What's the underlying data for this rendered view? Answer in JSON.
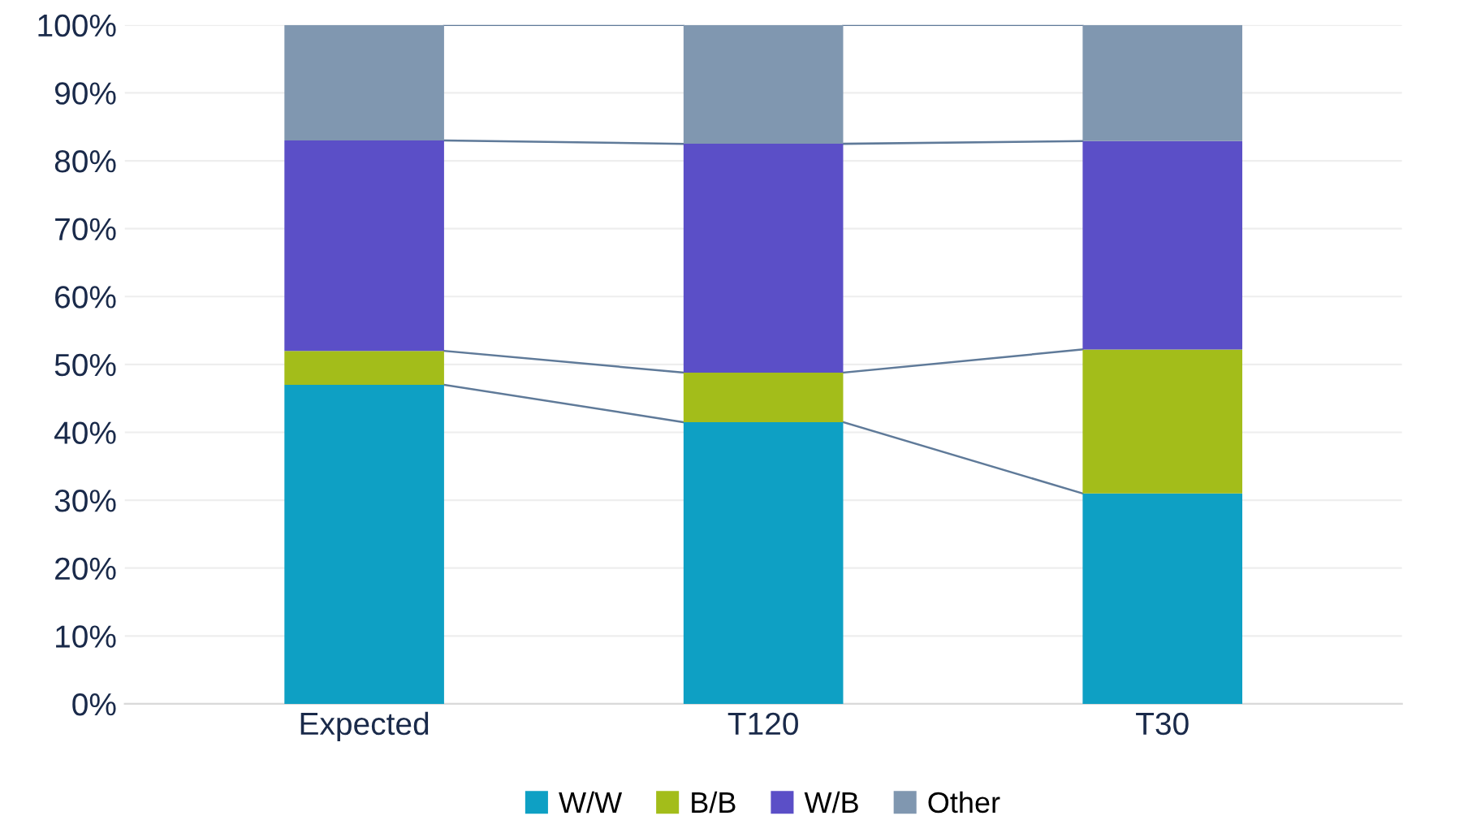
{
  "chart_data": {
    "type": "bar",
    "stacked": true,
    "categories": [
      "Expected",
      "T120",
      "T30"
    ],
    "series": [
      {
        "name": "W/W",
        "color": "#0ea0c4",
        "values": [
          47,
          41.5,
          31
        ]
      },
      {
        "name": "B/B",
        "color": "#a3bd1a",
        "values": [
          5,
          7.3,
          21.2
        ]
      },
      {
        "name": "W/B",
        "color": "#5b4fc7",
        "values": [
          31,
          33.7,
          30.7
        ]
      },
      {
        "name": "Other",
        "color": "#8097b0",
        "values": [
          17,
          17.5,
          17.1
        ]
      }
    ],
    "ylim": [
      0,
      100
    ],
    "yticks": [
      {
        "value": 0,
        "label": "0%"
      },
      {
        "value": 10,
        "label": "10%"
      },
      {
        "value": 20,
        "label": "20%"
      },
      {
        "value": 30,
        "label": "30%"
      },
      {
        "value": 40,
        "label": "40%"
      },
      {
        "value": 50,
        "label": "50%"
      },
      {
        "value": 60,
        "label": "60%"
      },
      {
        "value": 70,
        "label": "70%"
      },
      {
        "value": 80,
        "label": "80%"
      },
      {
        "value": 90,
        "label": "90%"
      },
      {
        "value": 100,
        "label": "100%"
      }
    ],
    "grid": "y",
    "legend": "bottom"
  }
}
